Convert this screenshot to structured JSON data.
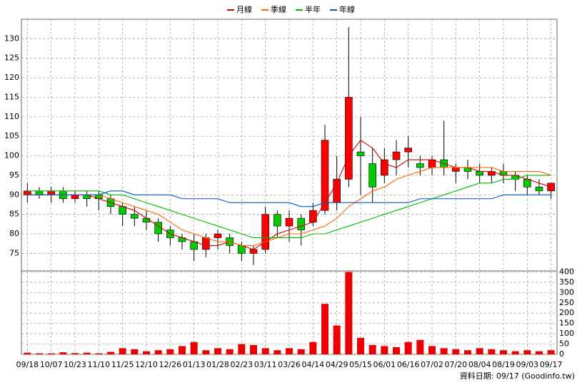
{
  "footer": "資料日期: 09/17  (Goodinfo.tw)",
  "chart_data": [
    {
      "type": "candlestick",
      "categories": [
        "09/18",
        null,
        "10/07",
        null,
        "10/23",
        null,
        "11/10",
        null,
        "11/25",
        null,
        "12/10",
        null,
        "12/26",
        null,
        "01/13",
        null,
        "01/28",
        null,
        "02/23",
        null,
        "03/11",
        null,
        "03/26",
        null,
        "04/14",
        null,
        "04/29",
        null,
        "05/15",
        null,
        "06/01",
        null,
        "06/16",
        null,
        "07/02",
        null,
        "07/20",
        null,
        "08/04",
        null,
        "08/19",
        null,
        "09/03",
        null,
        "09/17"
      ],
      "open": [
        90,
        91,
        90,
        91,
        89,
        90,
        90,
        89,
        87,
        85,
        84,
        83,
        81,
        79,
        78,
        76,
        79,
        79,
        77,
        75,
        76,
        85,
        82,
        84,
        83,
        86,
        88,
        94,
        101,
        98,
        95,
        99,
        101,
        98,
        97,
        99,
        96,
        97,
        96,
        95,
        96,
        95,
        94,
        92,
        91
      ],
      "high": [
        93,
        92,
        92,
        92,
        91,
        91,
        91,
        90,
        88,
        87,
        86,
        84,
        82,
        80,
        80,
        80,
        81,
        80,
        78,
        77,
        87,
        86,
        86,
        85,
        88,
        108,
        100,
        133,
        110,
        102,
        102,
        104,
        105,
        100,
        100,
        109,
        98,
        99,
        98,
        97,
        98,
        96,
        95,
        94,
        93
      ],
      "low": [
        88,
        89,
        88,
        88,
        88,
        87,
        86,
        85,
        82,
        82,
        81,
        78,
        77,
        76,
        73,
        74,
        76,
        75,
        73,
        72,
        75,
        79,
        78,
        77,
        82,
        85,
        86,
        92,
        90,
        88,
        93,
        95,
        97,
        95,
        95,
        95,
        93,
        94,
        93,
        93,
        93,
        91,
        90,
        90,
        89
      ],
      "close": [
        91,
        90,
        91,
        89,
        90,
        89,
        89,
        87,
        85,
        84,
        83,
        80,
        79,
        78,
        76,
        79,
        80,
        77,
        75,
        76,
        85,
        82,
        84,
        81,
        86,
        104,
        94,
        115,
        100,
        92,
        99,
        101,
        102,
        97,
        99,
        97,
        97,
        96,
        95,
        96,
        95,
        94,
        92,
        91,
        93
      ],
      "up_color": "#ff0000",
      "down_color": "#00cc00",
      "ylim": [
        70.5,
        135
      ],
      "yticks": [
        75,
        80,
        85,
        90,
        95,
        100,
        105,
        110,
        115,
        120,
        125,
        130
      ],
      "grid": true,
      "series": [
        {
          "name": "月線",
          "color": "#cc0000",
          "values": [
            90,
            90,
            90,
            90,
            90,
            90,
            89,
            88,
            87,
            86,
            84,
            82,
            80,
            79,
            78,
            77,
            77,
            78,
            77,
            76,
            78,
            80,
            81,
            82,
            83,
            88,
            93,
            100,
            104,
            102,
            98,
            97,
            99,
            99,
            99,
            98,
            97,
            97,
            96,
            96,
            95,
            95,
            94,
            93,
            92
          ]
        },
        {
          "name": "季線",
          "color": "#ff6600",
          "values": [
            90,
            90,
            90,
            90,
            90,
            90,
            90,
            89,
            88,
            87,
            86,
            85,
            83,
            81,
            80,
            79,
            78,
            78,
            77,
            77,
            78,
            79,
            80,
            80,
            81,
            82,
            84,
            87,
            89,
            91,
            92,
            94,
            95,
            96,
            97,
            97,
            97,
            97,
            97,
            97,
            96,
            96,
            96,
            96,
            95
          ]
        },
        {
          "name": "半年",
          "color": "#00bb00",
          "values": [
            91,
            91,
            91,
            91,
            91,
            91,
            91,
            90,
            90,
            89,
            88,
            87,
            86,
            85,
            84,
            83,
            82,
            81,
            80,
            79,
            79,
            79,
            79,
            79,
            80,
            80,
            81,
            82,
            83,
            84,
            85,
            86,
            87,
            88,
            89,
            90,
            91,
            92,
            93,
            93,
            94,
            94,
            95,
            95,
            95
          ]
        },
        {
          "name": "年線",
          "color": "#0055cc",
          "values": [
            90,
            90,
            90,
            90,
            90,
            90,
            90,
            91,
            91,
            90,
            90,
            90,
            90,
            89,
            89,
            89,
            89,
            88,
            88,
            88,
            88,
            88,
            88,
            87,
            87,
            88,
            88,
            88,
            88,
            88,
            88,
            88,
            88,
            89,
            89,
            89,
            89,
            89,
            89,
            89,
            90,
            90,
            90,
            90,
            90
          ]
        }
      ]
    },
    {
      "type": "bar",
      "color": "#ee0000",
      "values": [
        8,
        5,
        5,
        10,
        6,
        8,
        5,
        12,
        30,
        25,
        15,
        20,
        25,
        40,
        60,
        20,
        30,
        25,
        50,
        45,
        30,
        20,
        30,
        25,
        60,
        245,
        140,
        400,
        80,
        45,
        40,
        35,
        60,
        70,
        40,
        30,
        25,
        20,
        30,
        25,
        20,
        15,
        20,
        15,
        20
      ],
      "ylim": [
        0,
        405
      ],
      "yticks": [
        0,
        50,
        100,
        150,
        200,
        250,
        300,
        350,
        400
      ],
      "grid": true
    }
  ]
}
